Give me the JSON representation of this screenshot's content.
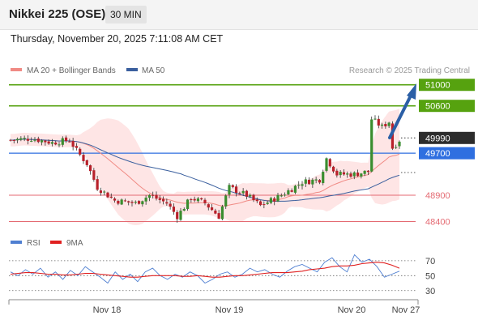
{
  "header": {
    "title": "Nikkei 225 (OSE)",
    "interval": "30 MIN",
    "timestamp": "Thursday, November 20, 2025 7:11:08 AM CET"
  },
  "legend": {
    "items": [
      {
        "label": "MA 20 + Bollinger Bands",
        "color": "#f08a84"
      },
      {
        "label": "MA 50",
        "color": "#3a5f9e"
      }
    ],
    "credit": "Research © 2025 Trading Central"
  },
  "rsi_legend": {
    "items": [
      {
        "label": "RSI",
        "color": "#4f7fd1"
      },
      {
        "label": "9MA",
        "color": "#e02020"
      }
    ]
  },
  "colors": {
    "up": "#3a8d2f",
    "down": "#b8202a",
    "resistance": "#56a20f",
    "support": "#e46a72",
    "pivot": "#2f6fe0",
    "arrow": "#2b5fa6",
    "band_fill": "#fddcdc"
  },
  "chart_data": [
    {
      "type": "candlestick",
      "title": "Nikkei 225 (OSE)",
      "interval": "30 MIN",
      "ylim": [
        48300,
        51150
      ],
      "x_ticks": [
        "Nov 18",
        "Nov 19",
        "Nov 20",
        "Nov 27"
      ],
      "levels": [
        {
          "label": "51000",
          "value": 51000,
          "kind": "resistance"
        },
        {
          "label": "50600",
          "value": 50600,
          "kind": "resistance"
        },
        {
          "label": "49990",
          "value": 49990,
          "kind": "last"
        },
        {
          "label": "49700",
          "value": 49700,
          "kind": "pivot"
        },
        {
          "label": "48900",
          "value": 48900,
          "kind": "support"
        },
        {
          "label": "48400",
          "value": 48400,
          "kind": "support"
        }
      ],
      "forecast_target": 51000
    },
    {
      "type": "line",
      "series": [
        {
          "name": "RSI",
          "values": [
            55,
            50,
            58,
            52,
            60,
            48,
            55,
            45,
            57,
            50,
            62,
            55,
            48,
            40,
            55,
            45,
            52,
            42,
            55,
            60,
            50,
            45,
            52,
            48,
            55,
            50,
            40,
            45,
            52,
            55,
            48,
            52,
            60,
            55,
            58,
            52,
            48,
            56,
            62,
            65,
            60,
            55,
            68,
            74,
            62,
            55,
            78,
            68,
            72,
            62,
            48,
            52,
            56
          ]
        },
        {
          "name": "9MA",
          "values": [
            52,
            53,
            54,
            54,
            53,
            52,
            52,
            51,
            51,
            52,
            53,
            53,
            52,
            51,
            50,
            49,
            48,
            48,
            49,
            50,
            50,
            50,
            50,
            49,
            49,
            50,
            49,
            48,
            48,
            49,
            50,
            50,
            51,
            52,
            53,
            54,
            54,
            54,
            55,
            56,
            58,
            59,
            60,
            62,
            63,
            63,
            64,
            66,
            67,
            68,
            67,
            64,
            60
          ]
        }
      ],
      "ylim": [
        20,
        85
      ],
      "y_ticks": [
        70,
        50,
        30
      ]
    }
  ]
}
